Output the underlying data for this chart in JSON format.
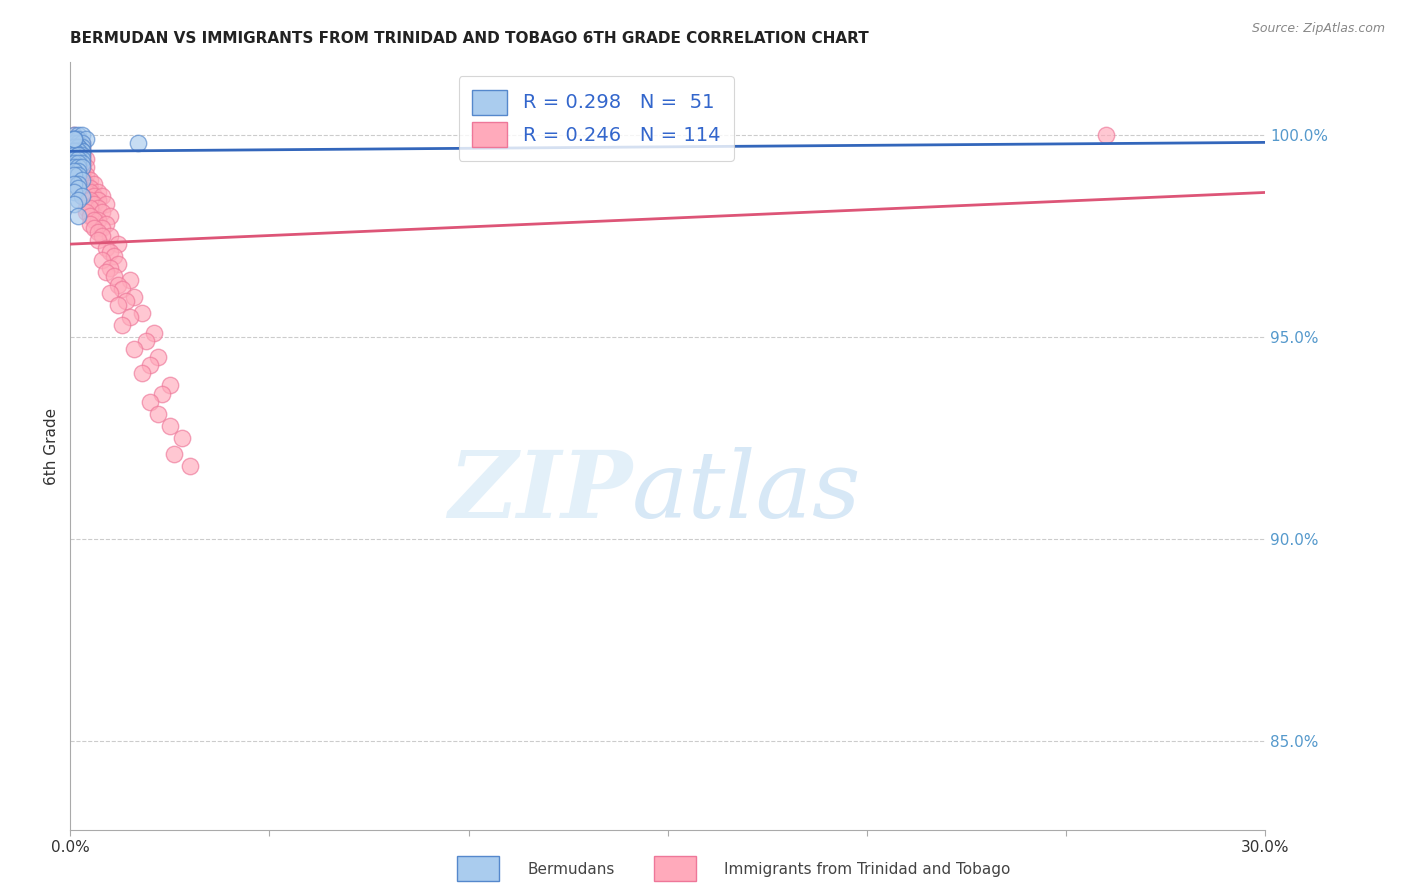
{
  "title": "BERMUDAN VS IMMIGRANTS FROM TRINIDAD AND TOBAGO 6TH GRADE CORRELATION CHART",
  "source": "Source: ZipAtlas.com",
  "ylabel": "6th Grade",
  "y_ticks": [
    0.85,
    0.9,
    0.95,
    1.0
  ],
  "y_tick_labels": [
    "85.0%",
    "90.0%",
    "95.0%",
    "100.0%"
  ],
  "x_range": [
    0.0,
    0.3
  ],
  "y_range": [
    0.828,
    1.018
  ],
  "bermuda_R": 0.298,
  "bermuda_N": 51,
  "tt_R": 0.246,
  "tt_N": 114,
  "bermuda_color": "#aaccee",
  "tt_color": "#ffaabb",
  "bermuda_edge_color": "#5588cc",
  "tt_edge_color": "#ee7799",
  "bermuda_line_color": "#3366bb",
  "tt_line_color": "#dd5577",
  "watermark_zip": "ZIP",
  "watermark_atlas": "atlas",
  "legend_label_bermuda": "Bermudans",
  "legend_label_tt": "Immigrants from Trinidad and Tobago",
  "bermuda_x": [
    0.001,
    0.002,
    0.003,
    0.001,
    0.002,
    0.004,
    0.001,
    0.002,
    0.003,
    0.001,
    0.003,
    0.002,
    0.001,
    0.002,
    0.003,
    0.002,
    0.001,
    0.002,
    0.001,
    0.003,
    0.002,
    0.001,
    0.002,
    0.003,
    0.001,
    0.002,
    0.003,
    0.001,
    0.002,
    0.003,
    0.001,
    0.002,
    0.001,
    0.002,
    0.003,
    0.002,
    0.001,
    0.002,
    0.001,
    0.003,
    0.002,
    0.001,
    0.002,
    0.001,
    0.003,
    0.002,
    0.001,
    0.002,
    0.017,
    0.001,
    0.001
  ],
  "bermuda_y": [
    1.0,
    1.0,
    1.0,
    0.999,
    0.999,
    0.999,
    0.998,
    0.998,
    0.998,
    0.997,
    0.997,
    0.997,
    0.997,
    0.997,
    0.996,
    0.996,
    0.996,
    0.996,
    0.996,
    0.996,
    0.996,
    0.996,
    0.995,
    0.995,
    0.995,
    0.995,
    0.994,
    0.994,
    0.994,
    0.993,
    0.993,
    0.993,
    0.992,
    0.992,
    0.992,
    0.991,
    0.991,
    0.99,
    0.99,
    0.989,
    0.988,
    0.988,
    0.987,
    0.986,
    0.985,
    0.984,
    0.983,
    0.98,
    0.998,
    0.999,
    0.999
  ],
  "tt_x": [
    0.001,
    0.001,
    0.002,
    0.001,
    0.002,
    0.001,
    0.003,
    0.002,
    0.001,
    0.002,
    0.001,
    0.003,
    0.002,
    0.001,
    0.002,
    0.003,
    0.001,
    0.002,
    0.003,
    0.001,
    0.002,
    0.003,
    0.001,
    0.002,
    0.003,
    0.004,
    0.002,
    0.001,
    0.003,
    0.002,
    0.001,
    0.004,
    0.002,
    0.003,
    0.001,
    0.002,
    0.003,
    0.001,
    0.003,
    0.002,
    0.004,
    0.003,
    0.002,
    0.005,
    0.003,
    0.004,
    0.002,
    0.006,
    0.003,
    0.004,
    0.005,
    0.003,
    0.007,
    0.004,
    0.005,
    0.003,
    0.006,
    0.008,
    0.004,
    0.007,
    0.005,
    0.006,
    0.009,
    0.004,
    0.007,
    0.005,
    0.008,
    0.004,
    0.01,
    0.005,
    0.007,
    0.006,
    0.009,
    0.005,
    0.008,
    0.006,
    0.007,
    0.01,
    0.008,
    0.007,
    0.012,
    0.009,
    0.01,
    0.011,
    0.008,
    0.012,
    0.01,
    0.009,
    0.011,
    0.015,
    0.012,
    0.013,
    0.01,
    0.016,
    0.014,
    0.012,
    0.018,
    0.015,
    0.013,
    0.021,
    0.019,
    0.016,
    0.022,
    0.02,
    0.018,
    0.025,
    0.023,
    0.02,
    0.022,
    0.025,
    0.028,
    0.26,
    0.026,
    0.03
  ],
  "tt_y": [
    1.0,
    0.999,
    0.999,
    0.998,
    0.998,
    0.998,
    0.998,
    0.997,
    0.997,
    0.997,
    0.997,
    0.997,
    0.997,
    0.996,
    0.996,
    0.996,
    0.996,
    0.996,
    0.995,
    0.995,
    0.995,
    0.995,
    0.994,
    0.994,
    0.994,
    0.994,
    0.993,
    0.993,
    0.993,
    0.993,
    0.992,
    0.992,
    0.992,
    0.992,
    0.992,
    0.991,
    0.991,
    0.991,
    0.99,
    0.99,
    0.99,
    0.99,
    0.989,
    0.989,
    0.989,
    0.988,
    0.988,
    0.988,
    0.988,
    0.987,
    0.987,
    0.987,
    0.986,
    0.986,
    0.986,
    0.985,
    0.985,
    0.985,
    0.984,
    0.984,
    0.984,
    0.983,
    0.983,
    0.982,
    0.982,
    0.982,
    0.981,
    0.981,
    0.98,
    0.98,
    0.979,
    0.979,
    0.978,
    0.978,
    0.977,
    0.977,
    0.976,
    0.975,
    0.975,
    0.974,
    0.973,
    0.972,
    0.971,
    0.97,
    0.969,
    0.968,
    0.967,
    0.966,
    0.965,
    0.964,
    0.963,
    0.962,
    0.961,
    0.96,
    0.959,
    0.958,
    0.956,
    0.955,
    0.953,
    0.951,
    0.949,
    0.947,
    0.945,
    0.943,
    0.941,
    0.938,
    0.936,
    0.934,
    0.931,
    0.928,
    0.925,
    1.0,
    0.921,
    0.918
  ],
  "bermuda_trendline": [
    0.996,
    0.9982
  ],
  "tt_trendline": [
    0.973,
    0.9858
  ],
  "grid_color": "#cccccc",
  "tick_color": "#5599cc",
  "x_tick_positions": [
    0.0,
    0.05,
    0.1,
    0.15,
    0.2,
    0.25,
    0.3
  ]
}
